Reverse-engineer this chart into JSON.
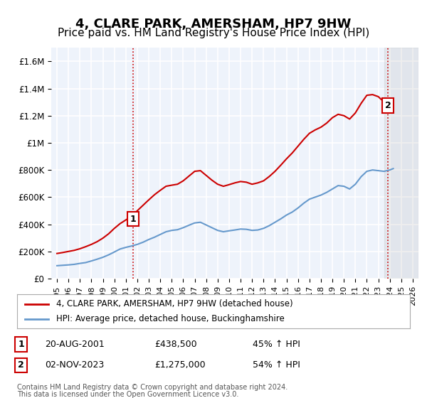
{
  "title": "4, CLARE PARK, AMERSHAM, HP7 9HW",
  "subtitle": "Price paid vs. HM Land Registry's House Price Index (HPI)",
  "title_fontsize": 13,
  "subtitle_fontsize": 11,
  "background_color": "#ffffff",
  "plot_bg_color": "#eef3fb",
  "grid_color": "#ffffff",
  "ylabel_color": "#333333",
  "hpi_line_color": "#6699cc",
  "price_line_color": "#cc0000",
  "vline_color": "#cc0000",
  "vline_style": ":",
  "marker1_label": "1",
  "marker2_label": "2",
  "event1_year": 2001.64,
  "event1_price": 438500,
  "event1_date": "20-AUG-2001",
  "event1_pct": "45% ↑ HPI",
  "event2_year": 2023.84,
  "event2_price": 1275000,
  "event2_date": "02-NOV-2023",
  "event2_pct": "54% ↑ HPI",
  "legend_label1": "4, CLARE PARK, AMERSHAM, HP7 9HW (detached house)",
  "legend_label2": "HPI: Average price, detached house, Buckinghamshire",
  "footnote1": "Contains HM Land Registry data © Crown copyright and database right 2024.",
  "footnote2": "This data is licensed under the Open Government Licence v3.0.",
  "xlim_min": 1994.5,
  "xlim_max": 2026.5,
  "ylim_min": 0,
  "ylim_max": 1700000,
  "yticks": [
    0,
    200000,
    400000,
    600000,
    800000,
    1000000,
    1200000,
    1400000,
    1600000
  ],
  "ytick_labels": [
    "£0",
    "£200K",
    "£400K",
    "£600K",
    "£800K",
    "£1M",
    "£1.2M",
    "£1.4M",
    "£1.6M"
  ],
  "xticks": [
    1995,
    1996,
    1997,
    1998,
    1999,
    2000,
    2001,
    2002,
    2003,
    2004,
    2005,
    2006,
    2007,
    2008,
    2009,
    2010,
    2011,
    2012,
    2013,
    2014,
    2015,
    2016,
    2017,
    2018,
    2019,
    2020,
    2021,
    2022,
    2023,
    2024,
    2025,
    2026
  ],
  "hpi_years": [
    1995,
    1995.5,
    1996,
    1996.5,
    1997,
    1997.5,
    1998,
    1998.5,
    1999,
    1999.5,
    2000,
    2000.5,
    2001,
    2001.5,
    2002,
    2002.5,
    2003,
    2003.5,
    2004,
    2004.5,
    2005,
    2005.5,
    2006,
    2006.5,
    2007,
    2007.5,
    2008,
    2008.5,
    2009,
    2009.5,
    2010,
    2010.5,
    2011,
    2011.5,
    2012,
    2012.5,
    2013,
    2013.5,
    2014,
    2014.5,
    2015,
    2015.5,
    2016,
    2016.5,
    2017,
    2017.5,
    2018,
    2018.5,
    2019,
    2019.5,
    2020,
    2020.5,
    2021,
    2021.5,
    2022,
    2022.5,
    2023,
    2023.5,
    2024,
    2024.3
  ],
  "hpi_values": [
    95000,
    98000,
    101000,
    105000,
    112000,
    118000,
    130000,
    143000,
    157000,
    175000,
    196000,
    218000,
    230000,
    240000,
    252000,
    268000,
    288000,
    305000,
    325000,
    345000,
    355000,
    360000,
    375000,
    393000,
    410000,
    415000,
    395000,
    375000,
    355000,
    345000,
    352000,
    358000,
    365000,
    363000,
    355000,
    358000,
    370000,
    390000,
    415000,
    440000,
    468000,
    490000,
    520000,
    555000,
    585000,
    600000,
    615000,
    635000,
    660000,
    685000,
    680000,
    660000,
    695000,
    750000,
    790000,
    800000,
    795000,
    790000,
    800000,
    810000
  ],
  "price_years": [
    1995,
    1995.5,
    1996,
    1996.5,
    1997,
    1997.5,
    1998,
    1998.5,
    1999,
    1999.5,
    2000,
    2000.5,
    2001,
    2001.5,
    2002,
    2002.5,
    2003,
    2003.5,
    2004,
    2004.5,
    2005,
    2005.5,
    2006,
    2006.5,
    2007,
    2007.5,
    2008,
    2008.5,
    2009,
    2009.5,
    2010,
    2010.5,
    2011,
    2011.5,
    2012,
    2012.5,
    2013,
    2013.5,
    2014,
    2014.5,
    2015,
    2015.5,
    2016,
    2016.5,
    2017,
    2017.5,
    2018,
    2018.5,
    2019,
    2019.5,
    2020,
    2020.5,
    2021,
    2021.5,
    2022,
    2022.5,
    2023,
    2023.5,
    2024,
    2024.3
  ],
  "price_values": [
    185000,
    192000,
    200000,
    208000,
    220000,
    235000,
    252000,
    272000,
    298000,
    330000,
    370000,
    405000,
    432000,
    460000,
    500000,
    540000,
    580000,
    618000,
    650000,
    680000,
    688000,
    695000,
    720000,
    755000,
    790000,
    795000,
    760000,
    725000,
    695000,
    680000,
    692000,
    705000,
    715000,
    710000,
    695000,
    705000,
    720000,
    752000,
    790000,
    835000,
    882000,
    925000,
    975000,
    1025000,
    1070000,
    1095000,
    1115000,
    1145000,
    1185000,
    1210000,
    1200000,
    1175000,
    1220000,
    1290000,
    1350000,
    1355000,
    1340000,
    1300000,
    1280000,
    1270000
  ]
}
